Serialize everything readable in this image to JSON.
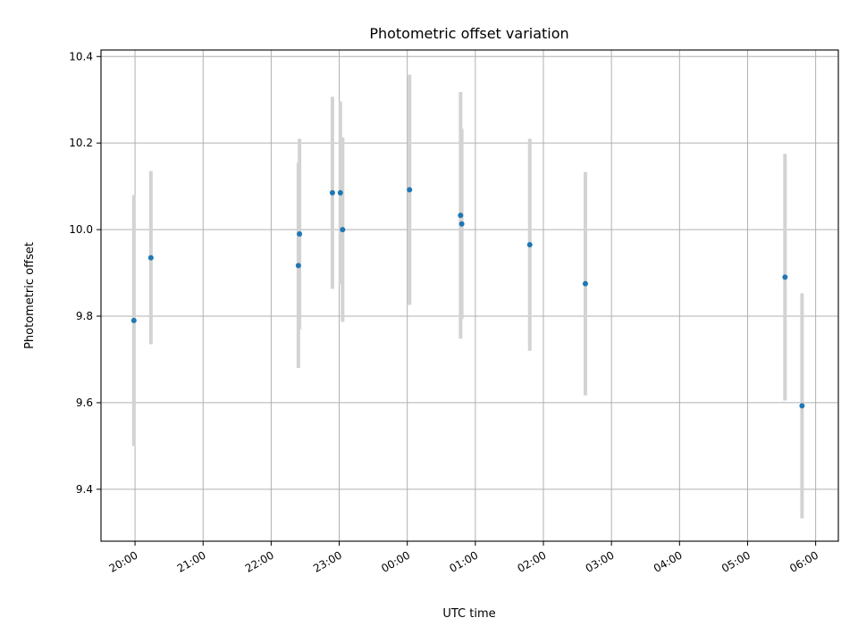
{
  "chart_data": {
    "type": "scatter",
    "title": "Photometric offset variation",
    "xlabel": "UTC time",
    "ylabel": "Photometric offset",
    "x_ticks": [
      "20:00",
      "21:00",
      "22:00",
      "23:00",
      "00:00",
      "01:00",
      "02:00",
      "03:00",
      "04:00",
      "05:00",
      "06:00"
    ],
    "y_ticks": [
      "9.4",
      "9.6",
      "9.8",
      "10.0",
      "10.2",
      "10.4"
    ],
    "xlim": [
      "19:30",
      "06:20"
    ],
    "ylim": [
      9.28,
      10.415
    ],
    "grid": true,
    "error_bar_color": "#d3d3d3",
    "point_color": "#1f77b4",
    "points": [
      {
        "x": "19:59",
        "y": 9.79,
        "err": 0.29
      },
      {
        "x": "20:14",
        "y": 9.935,
        "err": 0.2
      },
      {
        "x": "22:24",
        "y": 9.917,
        "err": 0.237
      },
      {
        "x": "22:25",
        "y": 9.99,
        "err": 0.22
      },
      {
        "x": "22:54",
        "y": 10.085,
        "err": 0.222
      },
      {
        "x": "23:01",
        "y": 10.085,
        "err": 0.211
      },
      {
        "x": "23:03",
        "y": 10.0,
        "err": 0.213
      },
      {
        "x": "00:02",
        "y": 10.092,
        "err": 0.266
      },
      {
        "x": "00:47",
        "y": 10.033,
        "err": 0.285
      },
      {
        "x": "00:48",
        "y": 10.013,
        "err": 0.22
      },
      {
        "x": "01:48",
        "y": 9.965,
        "err": 0.245
      },
      {
        "x": "02:37",
        "y": 9.875,
        "err": 0.258
      },
      {
        "x": "05:33",
        "y": 9.89,
        "err": 0.285
      },
      {
        "x": "05:48",
        "y": 9.593,
        "err": 0.26
      }
    ]
  }
}
